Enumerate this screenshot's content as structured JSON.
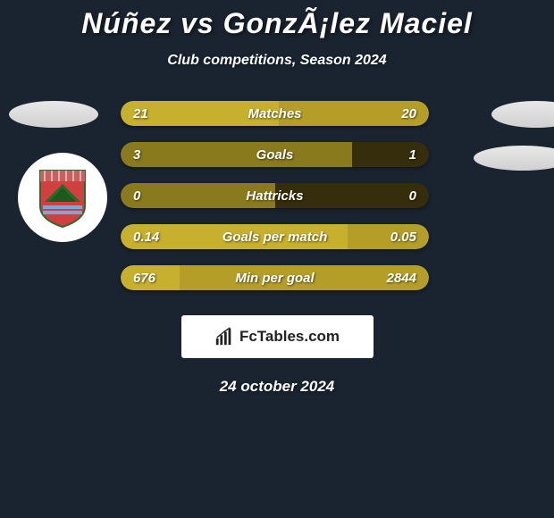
{
  "title": "Núñez vs GonzÃ¡lez Maciel",
  "subtitle": "Club competitions, Season 2024",
  "date": "24 october 2024",
  "logo_text": "FcTables.com",
  "colors": {
    "left_dark": "#8a7a1e",
    "left_light": "#c7b02d",
    "right_dark": "#352d0b",
    "right_light": "#b59e28",
    "background": "#1a2430"
  },
  "bars": [
    {
      "label": "Matches",
      "left_val": "21",
      "right_val": "20",
      "left_pct": 51.2,
      "right_pct": 48.8,
      "dark": false
    },
    {
      "label": "Goals",
      "left_val": "3",
      "right_val": "1",
      "left_pct": 75.0,
      "right_pct": 25.0,
      "dark": true
    },
    {
      "label": "Hattricks",
      "left_val": "0",
      "right_val": "0",
      "left_pct": 50.0,
      "right_pct": 50.0,
      "dark": true
    },
    {
      "label": "Goals per match",
      "left_val": "0.14",
      "right_val": "0.05",
      "left_pct": 73.7,
      "right_pct": 26.3,
      "dark": false
    },
    {
      "label": "Min per goal",
      "left_val": "676",
      "right_val": "2844",
      "left_pct": 19.2,
      "right_pct": 80.8,
      "dark": false
    }
  ]
}
